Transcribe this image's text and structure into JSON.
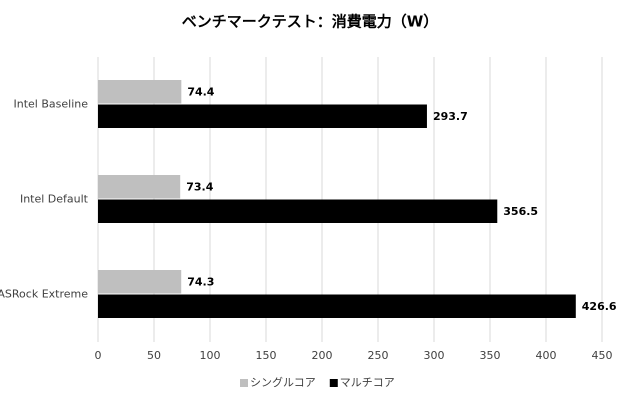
{
  "chart_data": {
    "type": "hbar",
    "title": "ベンチマークテスト：消費電力（W）",
    "categories": [
      "Intel Baseline",
      "Intel Default",
      "ASRock Extreme"
    ],
    "series": [
      {
        "name": "シングルコア",
        "color": "#bfbfbf",
        "values": [
          74.4,
          73.4,
          74.3
        ]
      },
      {
        "name": "マルチコア",
        "color": "#000000",
        "values": [
          293.7,
          356.5,
          426.6
        ]
      }
    ],
    "xlim": [
      0,
      450
    ],
    "xticks": [
      0,
      50,
      100,
      150,
      200,
      250,
      300,
      350,
      400,
      450
    ],
    "grid": true,
    "legend": "bottom"
  }
}
